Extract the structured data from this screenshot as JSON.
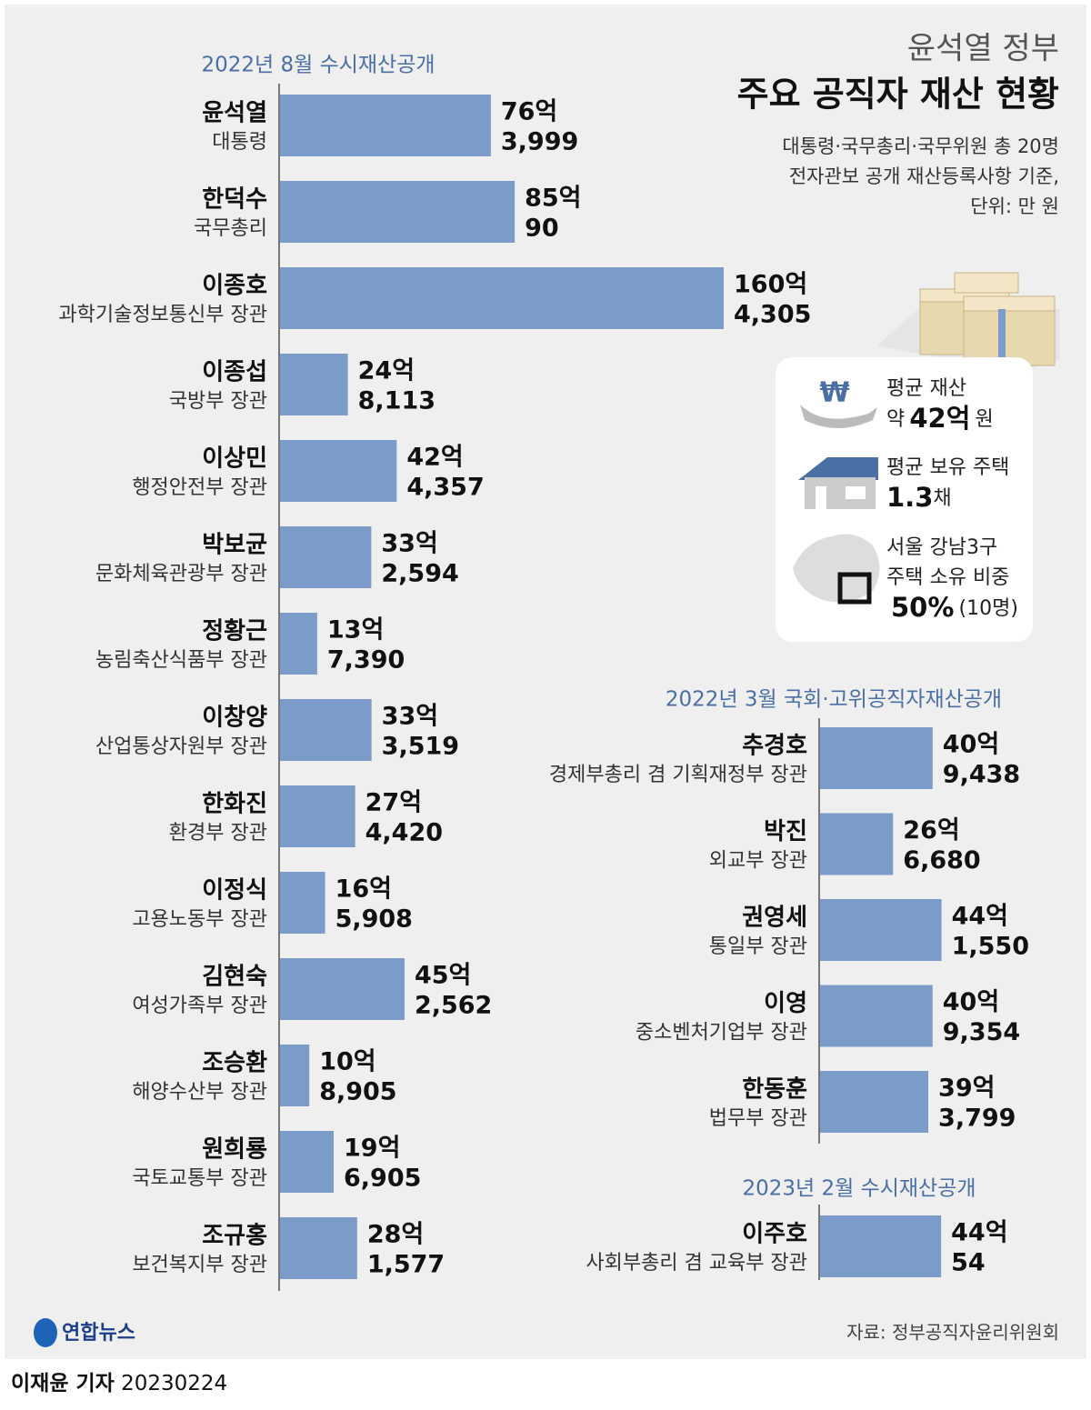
{
  "header": {
    "subtitle": "윤석열 정부",
    "title": "주요 공직자 재산 현황",
    "notes": [
      "대통령·국무총리·국무위원 총 20명",
      "전자관보 공개 재산등록사항 기준,",
      "단위: 만 원"
    ]
  },
  "summary": [
    {
      "label": "평균 재산",
      "prefix": "약",
      "value": "42억",
      "unit": "원"
    },
    {
      "label": "평균 보유 주택",
      "value": "1.3",
      "unit": "채"
    },
    {
      "label": "서울 강남3구",
      "label2": "주택 소유 비중",
      "value": "50%",
      "unit": "(10명)"
    }
  ],
  "chart_data": [
    {
      "type": "bar",
      "title": "2022년 8월 수시재산공개",
      "color": "#7b9bc8",
      "categories": [
        "윤석열",
        "한덕수",
        "이종호",
        "이종섭",
        "이상민",
        "박보균",
        "정황근",
        "이창양",
        "한화진",
        "이정식",
        "김현숙",
        "조승환",
        "원희룡",
        "조규홍"
      ],
      "roles": [
        "대통령",
        "국무총리",
        "과학기술정보통신부 장관",
        "국방부 장관",
        "행정안전부 장관",
        "문화체육관광부 장관",
        "농림축산식품부 장관",
        "산업통상자원부 장관",
        "환경부 장관",
        "고용노동부 장관",
        "여성가족부 장관",
        "해양수산부 장관",
        "국토교통부 장관",
        "보건복지부 장관"
      ],
      "values": [
        763999,
        850090,
        1604305,
        248113,
        424357,
        332594,
        137390,
        333519,
        274420,
        165908,
        452562,
        108905,
        196905,
        281577
      ],
      "value_labels": [
        [
          "76억",
          "3,999"
        ],
        [
          "85억",
          "90"
        ],
        [
          "160억",
          "4,305"
        ],
        [
          "24억",
          "8,113"
        ],
        [
          "42억",
          "4,357"
        ],
        [
          "33억",
          "2,594"
        ],
        [
          "13억",
          "7,390"
        ],
        [
          "33억",
          "3,519"
        ],
        [
          "27억",
          "4,420"
        ],
        [
          "16억",
          "5,908"
        ],
        [
          "45억",
          "2,562"
        ],
        [
          "10억",
          "8,905"
        ],
        [
          "19억",
          "6,905"
        ],
        [
          "28억",
          "1,577"
        ]
      ]
    },
    {
      "type": "bar",
      "title": "2022년 3월 국회·고위공직자재산공개",
      "color": "#7b9bc8",
      "categories": [
        "추경호",
        "박진",
        "권영세",
        "이영",
        "한동훈"
      ],
      "roles": [
        "경제부총리 겸 기획재정부 장관",
        "외교부 장관",
        "통일부 장관",
        "중소벤처기업부 장관",
        "법무부 장관"
      ],
      "values": [
        409438,
        266680,
        441550,
        409354,
        393799
      ],
      "value_labels": [
        [
          "40억",
          "9,438"
        ],
        [
          "26억",
          "6,680"
        ],
        [
          "44억",
          "1,550"
        ],
        [
          "40억",
          "9,354"
        ],
        [
          "39억",
          "3,799"
        ]
      ]
    },
    {
      "type": "bar",
      "title": "2023년 2월 수시재산공개",
      "color": "#7b9bc8",
      "categories": [
        "이주호"
      ],
      "roles": [
        "사회부총리 겸 교육부 장관"
      ],
      "values": [
        440054
      ],
      "value_labels": [
        [
          "44억",
          "54"
        ]
      ]
    }
  ],
  "footer": {
    "logo": "연합뉴스",
    "source": "자료: 정부공직자윤리위원회",
    "byline": "이재윤 기자",
    "date": "20230224"
  }
}
